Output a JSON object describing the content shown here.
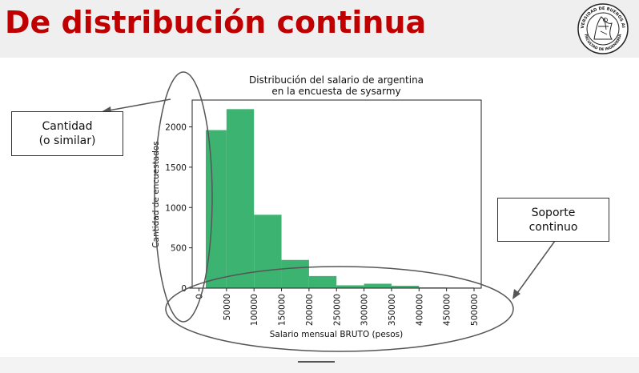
{
  "slide": {
    "title": "De distribución continua"
  },
  "callouts": {
    "left": {
      "line1": "Cantidad",
      "line2": "(o similar)"
    },
    "right": {
      "line1": "Soporte",
      "line2": "continuo"
    }
  },
  "logo": {
    "top_text": "UNIVERSIDAD DE BUENOS AIRES",
    "bottom_text": "FACULTAD DE INGENIERÍA"
  },
  "colors": {
    "title": "#c00000",
    "bars": "#3cb371",
    "annotation": "#555555"
  },
  "chart_data": {
    "type": "bar",
    "title_lines": [
      "Distribución del salario de argentina",
      "en la encuesta de sysarmy"
    ],
    "xlabel": "Salario mensual BRUTO (pesos)",
    "ylabel": "Cantidad de encuestados",
    "xlim": [
      0,
      520000
    ],
    "ylim": [
      0,
      2350
    ],
    "x_ticks": [
      0,
      50000,
      100000,
      150000,
      200000,
      250000,
      300000,
      350000,
      400000,
      450000,
      500000
    ],
    "y_ticks": [
      0,
      500,
      1000,
      1500,
      2000
    ],
    "bins": [
      {
        "start": 0,
        "end": 50000,
        "count": 1960
      },
      {
        "start": 50000,
        "end": 100000,
        "count": 2220
      },
      {
        "start": 100000,
        "end": 150000,
        "count": 910
      },
      {
        "start": 150000,
        "end": 200000,
        "count": 350
      },
      {
        "start": 200000,
        "end": 250000,
        "count": 150
      },
      {
        "start": 250000,
        "end": 300000,
        "count": 35
      },
      {
        "start": 300000,
        "end": 350000,
        "count": 55
      },
      {
        "start": 350000,
        "end": 400000,
        "count": 30
      },
      {
        "start": 400000,
        "end": 450000,
        "count": 10
      },
      {
        "start": 450000,
        "end": 500000,
        "count": 8
      },
      {
        "start": 500000,
        "end": 550000,
        "count": 5
      }
    ],
    "grid": false
  }
}
